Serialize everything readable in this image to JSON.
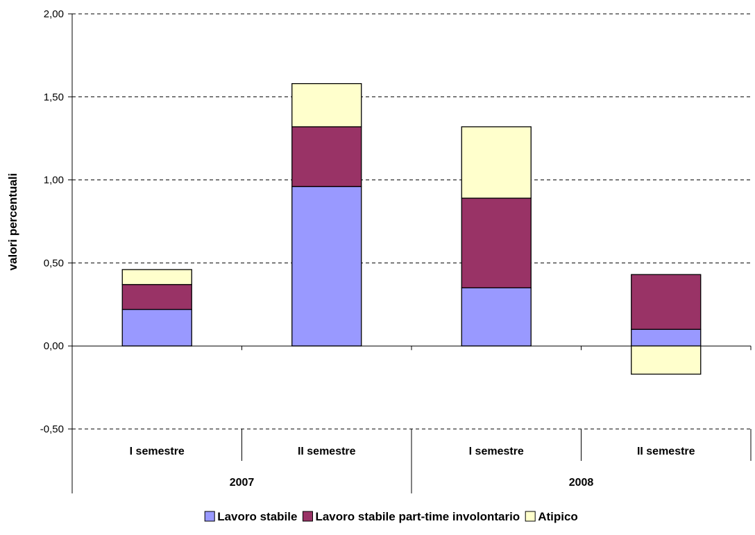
{
  "chart_data": {
    "type": "bar",
    "stacked": true,
    "ylabel": "valori percentuali",
    "ylim": [
      -0.5,
      2.0
    ],
    "yticks": [
      "2,00",
      "1,50",
      "1,00",
      "0,50",
      "0,00",
      "-0,50"
    ],
    "ytick_values": [
      2.0,
      1.5,
      1.0,
      0.5,
      0.0,
      -0.5
    ],
    "grid": true,
    "legend_position": "bottom",
    "categories": [
      "I semestre",
      "II semestre",
      "I semestre",
      "II semestre"
    ],
    "groups": [
      {
        "label": "2007",
        "span": 2
      },
      {
        "label": "2008",
        "span": 2
      }
    ],
    "series": [
      {
        "name": "Lavoro stabile",
        "color": "#9999ff",
        "values": [
          0.22,
          0.96,
          0.35,
          0.1
        ]
      },
      {
        "name": "Lavoro stabile part-time involontario",
        "color": "#993366",
        "values": [
          0.15,
          0.36,
          0.54,
          0.33
        ]
      },
      {
        "name": "Atipico",
        "color": "#ffffcc",
        "values": [
          0.09,
          0.26,
          0.43,
          -0.17
        ]
      }
    ]
  }
}
